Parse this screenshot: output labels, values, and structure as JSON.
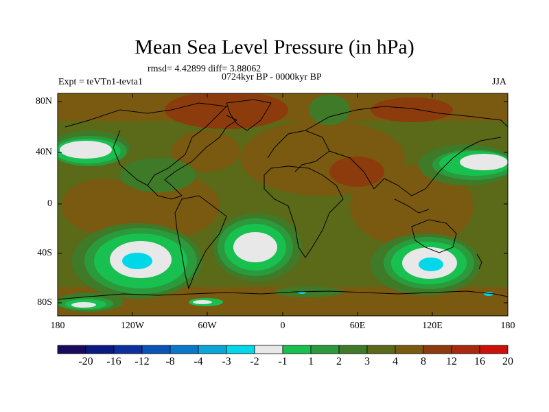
{
  "title": "Mean Sea Level Pressure (in hPa)",
  "stats_line": "rmsd= 4.42899 diff= 3.88062",
  "period": "0724kyr BP - 0000kyr BP",
  "experiment": "Expt = teVTn1-tevta1",
  "season": "JJA",
  "lat_ticks": [
    "80N",
    "40N",
    "0",
    "40S",
    "80S"
  ],
  "lon_ticks": [
    "180",
    "120W",
    "60W",
    "0",
    "60E",
    "120E",
    "180"
  ],
  "colorbar": {
    "labels": [
      "-20",
      "-16",
      "-12",
      "-8",
      "-4",
      "-3",
      "-2",
      "-1",
      "1",
      "2",
      "3",
      "4",
      "8",
      "12",
      "16",
      "20"
    ],
    "colors": [
      "#1a0a5e",
      "#0b1a80",
      "#0d2fa0",
      "#0a54b8",
      "#0a78c8",
      "#0aa6d8",
      "#00d8e8",
      "#e8e8e8",
      "#18c050",
      "#2a9a3c",
      "#3e7a28",
      "#5a6a18",
      "#7a5a10",
      "#8c3c0c",
      "#a82a0a",
      "#cc1208"
    ]
  }
}
